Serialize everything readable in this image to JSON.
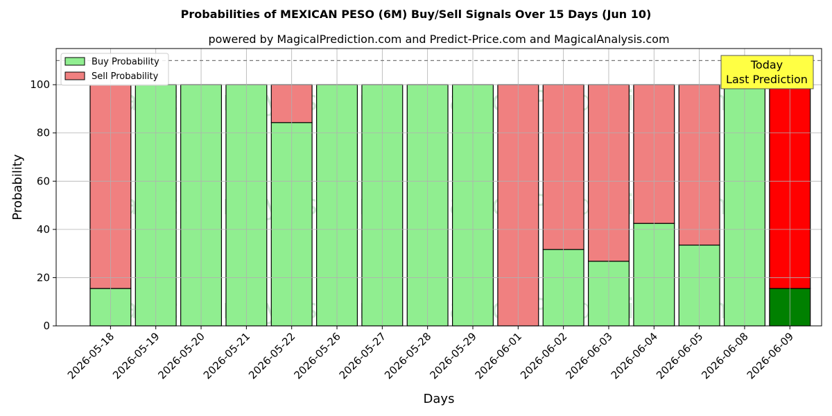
{
  "chart_data": {
    "type": "bar",
    "stacked": true,
    "title": "Probabilities of MEXICAN PESO (6M) Buy/Sell Signals Over 15 Days (Jun 10)",
    "subtitle": "powered by MagicalPrediction.com and Predict-Price.com and MagicalAnalysis.com",
    "xlabel": "Days",
    "ylabel": "Probability",
    "ylim": [
      0,
      115
    ],
    "yticks": [
      0,
      20,
      40,
      60,
      80,
      100
    ],
    "grid": true,
    "legend_position": "top-left",
    "reference_line": {
      "y": 110,
      "style": "dashed"
    },
    "categories": [
      "2026-05-18",
      "2026-05-19",
      "2026-05-20",
      "2026-05-21",
      "2026-05-22",
      "2026-05-26",
      "2026-05-27",
      "2026-05-28",
      "2026-05-29",
      "2026-06-01",
      "2026-06-02",
      "2026-06-03",
      "2026-06-04",
      "2026-06-05",
      "2026-06-08",
      "2026-06-09"
    ],
    "series": [
      {
        "name": "Buy Probability",
        "color": "#90ee90",
        "highlight_color": "#008000",
        "values": [
          15.5,
          100,
          100,
          100,
          84.3,
          100,
          100,
          100,
          100,
          0,
          31.7,
          26.8,
          42.5,
          33.5,
          100,
          15.5
        ]
      },
      {
        "name": "Sell Probability",
        "color": "#f08080",
        "highlight_color": "#ff0000",
        "values": [
          84.5,
          0,
          0,
          0,
          15.7,
          0,
          0,
          0,
          0,
          100,
          68.3,
          73.2,
          57.5,
          66.5,
          0,
          84.5
        ]
      }
    ],
    "highlight_index": 15,
    "annotation": {
      "lines": [
        "Today",
        "Last Prediction"
      ],
      "color": "#ffff44"
    },
    "watermarks": [
      "MagicalAnalysis.com",
      "MagicalPrediction.com"
    ]
  }
}
